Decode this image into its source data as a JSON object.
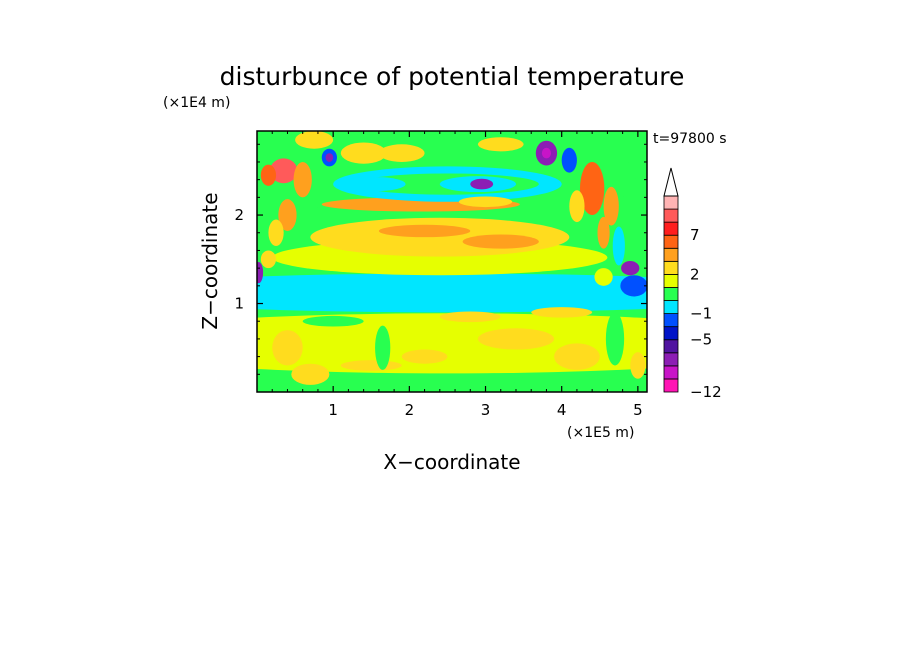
{
  "chart_data": {
    "type": "heatmap",
    "title": "disturbunce of potential temperature",
    "time_label": "t=97800 s",
    "xlabel": "X−coordinate",
    "ylabel": "Z−coordinate",
    "x_unit": "(×1E5 m)",
    "y_unit": "(×1E4 m)",
    "xlim": [
      0,
      5.12
    ],
    "ylim": [
      0,
      2.95
    ],
    "x_ticks": [
      {
        "v": 1,
        "label": "1"
      },
      {
        "v": 2,
        "label": "2"
      },
      {
        "v": 3,
        "label": "3"
      },
      {
        "v": 4,
        "label": "4"
      },
      {
        "v": 5,
        "label": "5"
      }
    ],
    "y_ticks": [
      {
        "v": 1,
        "label": "1"
      },
      {
        "v": 2,
        "label": "2"
      }
    ],
    "colorbar": {
      "colors": [
        "#ff14b4",
        "#c814c8",
        "#8c1eb4",
        "#5014a0",
        "#0014c8",
        "#0050ff",
        "#00e6ff",
        "#28ff50",
        "#e6ff00",
        "#ffdc1e",
        "#ffa01e",
        "#ff6414",
        "#ff1e1e",
        "#ff5a5a",
        "#ffb4b4"
      ],
      "labels": [
        {
          "index": 0,
          "text": "−12"
        },
        {
          "index": 4,
          "text": "−5"
        },
        {
          "index": 6,
          "text": "−1"
        },
        {
          "index": 9,
          "text": "2"
        },
        {
          "index": 12,
          "text": "7"
        }
      ]
    },
    "field_blobs": [
      {
        "x": 2.5,
        "y": 1.12,
        "rx": 4.6,
        "ry": 0.22,
        "v": -1
      },
      {
        "x": 2.4,
        "y": 1.52,
        "rx": 2.2,
        "ry": 0.2,
        "v": 1
      },
      {
        "x": 2.4,
        "y": 1.75,
        "rx": 1.7,
        "ry": 0.22,
        "v": 2
      },
      {
        "x": 2.2,
        "y": 1.82,
        "rx": 0.6,
        "ry": 0.07,
        "v": 3
      },
      {
        "x": 3.2,
        "y": 1.7,
        "rx": 0.5,
        "ry": 0.08,
        "v": 3
      },
      {
        "x": 2.15,
        "y": 2.12,
        "rx": 1.3,
        "ry": 0.08,
        "v": 3
      },
      {
        "x": 2.5,
        "y": 2.35,
        "rx": 1.5,
        "ry": 0.2,
        "v": -1
      },
      {
        "x": 2.5,
        "y": 2.35,
        "rx": 1.2,
        "ry": 0.12,
        "v": 0
      },
      {
        "x": 1.55,
        "y": 2.35,
        "rx": 0.4,
        "ry": 0.08,
        "v": -1
      },
      {
        "x": 2.9,
        "y": 2.35,
        "rx": 0.5,
        "ry": 0.09,
        "v": -1
      },
      {
        "x": 2.95,
        "y": 2.35,
        "rx": 0.15,
        "ry": 0.06,
        "v": -5
      },
      {
        "x": 3.8,
        "y": 2.7,
        "rx": 0.14,
        "ry": 0.14,
        "v": -5
      },
      {
        "x": 3.8,
        "y": 2.7,
        "rx": 0.06,
        "ry": 0.06,
        "v": -6
      },
      {
        "x": 4.1,
        "y": 2.62,
        "rx": 0.1,
        "ry": 0.14,
        "v": -2
      },
      {
        "x": 0.95,
        "y": 2.65,
        "rx": 0.1,
        "ry": 0.1,
        "v": -2
      },
      {
        "x": 0.95,
        "y": 2.65,
        "rx": 0.05,
        "ry": 0.05,
        "v": -5
      },
      {
        "x": 0.75,
        "y": 2.85,
        "rx": 0.25,
        "ry": 0.1,
        "v": 2
      },
      {
        "x": 1.4,
        "y": 2.7,
        "rx": 0.3,
        "ry": 0.12,
        "v": 2
      },
      {
        "x": 1.9,
        "y": 2.7,
        "rx": 0.3,
        "ry": 0.1,
        "v": 2
      },
      {
        "x": 3.2,
        "y": 2.8,
        "rx": 0.3,
        "ry": 0.08,
        "v": 2
      },
      {
        "x": 3.0,
        "y": 2.15,
        "rx": 0.35,
        "ry": 0.06,
        "v": 2
      },
      {
        "x": 0.35,
        "y": 2.5,
        "rx": 0.18,
        "ry": 0.14,
        "v": 6
      },
      {
        "x": 0.15,
        "y": 2.45,
        "rx": 0.1,
        "ry": 0.12,
        "v": 4
      },
      {
        "x": 0.6,
        "y": 2.4,
        "rx": 0.12,
        "ry": 0.2,
        "v": 3
      },
      {
        "x": 0.4,
        "y": 2.0,
        "rx": 0.12,
        "ry": 0.18,
        "v": 3
      },
      {
        "x": 0.25,
        "y": 1.8,
        "rx": 0.1,
        "ry": 0.15,
        "v": 2
      },
      {
        "x": 0.7,
        "y": 2.0,
        "rx": 0.18,
        "ry": 0.1,
        "v": 0
      },
      {
        "x": 0.02,
        "y": 1.35,
        "rx": 0.06,
        "ry": 0.12,
        "v": -5
      },
      {
        "x": 0.15,
        "y": 1.5,
        "rx": 0.1,
        "ry": 0.1,
        "v": 2
      },
      {
        "x": 4.4,
        "y": 2.3,
        "rx": 0.16,
        "ry": 0.3,
        "v": 4
      },
      {
        "x": 4.2,
        "y": 2.1,
        "rx": 0.1,
        "ry": 0.18,
        "v": 2
      },
      {
        "x": 4.65,
        "y": 2.1,
        "rx": 0.1,
        "ry": 0.22,
        "v": 3
      },
      {
        "x": 4.85,
        "y": 2.4,
        "rx": 0.12,
        "ry": 0.2,
        "v": 0
      },
      {
        "x": 4.9,
        "y": 1.4,
        "rx": 0.12,
        "ry": 0.08,
        "v": -5
      },
      {
        "x": 4.95,
        "y": 1.2,
        "rx": 0.18,
        "ry": 0.12,
        "v": -2
      },
      {
        "x": 4.55,
        "y": 1.3,
        "rx": 0.12,
        "ry": 0.1,
        "v": 1
      },
      {
        "x": 4.75,
        "y": 1.65,
        "rx": 0.08,
        "ry": 0.22,
        "v": -1
      },
      {
        "x": 4.55,
        "y": 1.8,
        "rx": 0.08,
        "ry": 0.18,
        "v": 3
      },
      {
        "x": 2.5,
        "y": 0.55,
        "rx": 4.8,
        "ry": 0.34,
        "v": 1
      },
      {
        "x": 3.4,
        "y": 0.6,
        "rx": 0.5,
        "ry": 0.12,
        "v": 2
      },
      {
        "x": 2.8,
        "y": 0.85,
        "rx": 0.4,
        "ry": 0.06,
        "v": 2
      },
      {
        "x": 1.5,
        "y": 0.3,
        "rx": 0.4,
        "ry": 0.06,
        "v": 2
      },
      {
        "x": 0.4,
        "y": 0.5,
        "rx": 0.2,
        "ry": 0.2,
        "v": 2
      },
      {
        "x": 0.7,
        "y": 0.2,
        "rx": 0.25,
        "ry": 0.12,
        "v": 2
      },
      {
        "x": 2.2,
        "y": 0.4,
        "rx": 0.3,
        "ry": 0.08,
        "v": 2
      },
      {
        "x": 4.2,
        "y": 0.4,
        "rx": 0.3,
        "ry": 0.15,
        "v": 2
      },
      {
        "x": 4.0,
        "y": 0.9,
        "rx": 0.4,
        "ry": 0.06,
        "v": 2
      },
      {
        "x": 1.65,
        "y": 0.5,
        "rx": 0.1,
        "ry": 0.25,
        "v": 0
      },
      {
        "x": 3.1,
        "y": 0.15,
        "rx": 0.4,
        "ry": 0.06,
        "v": 0
      },
      {
        "x": 1.0,
        "y": 0.8,
        "rx": 0.4,
        "ry": 0.06,
        "v": 0
      },
      {
        "x": 4.7,
        "y": 0.6,
        "rx": 0.12,
        "ry": 0.3,
        "v": 0
      },
      {
        "x": 5.0,
        "y": 0.3,
        "rx": 0.1,
        "ry": 0.15,
        "v": 2
      }
    ]
  }
}
